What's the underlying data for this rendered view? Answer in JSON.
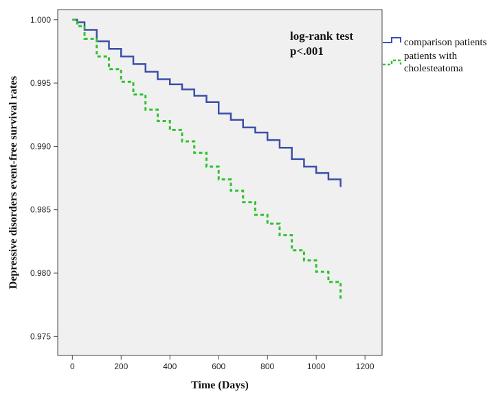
{
  "chart_data": {
    "type": "line",
    "title": "",
    "xlabel": "Time (Days)",
    "ylabel": "Depressive disorders event-free survival rates",
    "xlim": [
      -60,
      1270
    ],
    "ylim": [
      0.9735,
      1.0008
    ],
    "x_ticks": [
      0,
      200,
      400,
      600,
      800,
      1000,
      1200
    ],
    "y_ticks": [
      0.975,
      0.98,
      0.985,
      0.99,
      0.995,
      1.0
    ],
    "x_tick_labels": [
      "0",
      "200",
      "400",
      "600",
      "800",
      "1000",
      "1200"
    ],
    "y_tick_labels": [
      "0.975",
      "0.980",
      "0.985",
      "0.990",
      "0.995",
      "1.000"
    ],
    "grid": false,
    "legend_position": "right",
    "annotation": [
      "log-rank test",
      "p<.001"
    ],
    "series": [
      {
        "name": "comparison patients",
        "color": "#3a4fa8",
        "style": "solid",
        "x": [
          0,
          20,
          50,
          100,
          150,
          200,
          250,
          300,
          350,
          400,
          450,
          500,
          550,
          600,
          650,
          700,
          750,
          800,
          850,
          900,
          950,
          1000,
          1050,
          1100
        ],
        "y": [
          1.0,
          0.9998,
          0.9992,
          0.9983,
          0.9977,
          0.9971,
          0.9965,
          0.9959,
          0.9953,
          0.9949,
          0.9945,
          0.994,
          0.9935,
          0.9926,
          0.9921,
          0.9915,
          0.9911,
          0.9905,
          0.9899,
          0.989,
          0.9884,
          0.9879,
          0.9874,
          0.9868
        ]
      },
      {
        "name": "patients with cholesteatoma",
        "color": "#2ec22e",
        "style": "dashed",
        "x": [
          0,
          20,
          50,
          100,
          150,
          200,
          250,
          300,
          350,
          400,
          450,
          500,
          550,
          600,
          650,
          700,
          750,
          800,
          850,
          900,
          950,
          1000,
          1050,
          1100
        ],
        "y": [
          1.0,
          0.9995,
          0.9985,
          0.9971,
          0.9961,
          0.9951,
          0.9941,
          0.9929,
          0.992,
          0.9913,
          0.9904,
          0.9895,
          0.9884,
          0.9874,
          0.9865,
          0.9856,
          0.9846,
          0.9839,
          0.983,
          0.9818,
          0.981,
          0.9801,
          0.9793,
          0.9778
        ]
      }
    ]
  }
}
